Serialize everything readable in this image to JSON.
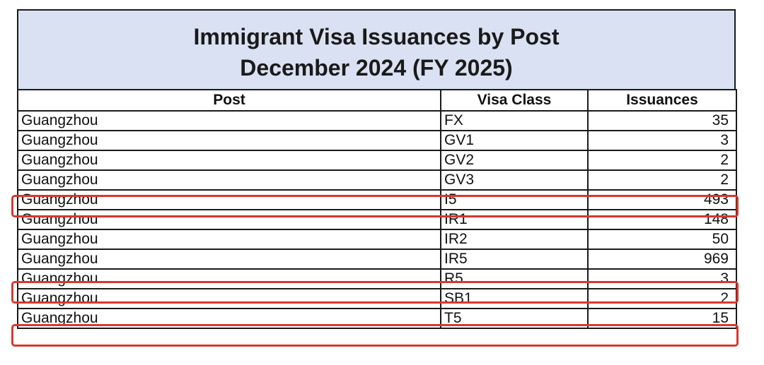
{
  "title": {
    "line1": "Immigrant Visa Issuances by Post",
    "line2": "December 2024 (FY 2025)"
  },
  "columns": [
    "Post",
    "Visa Class",
    "Issuances"
  ],
  "rows": [
    {
      "post": "Guangzhou",
      "visa_class": "FX",
      "issuances": "35"
    },
    {
      "post": "Guangzhou",
      "visa_class": "GV1",
      "issuances": "3"
    },
    {
      "post": "Guangzhou",
      "visa_class": "GV2",
      "issuances": "2"
    },
    {
      "post": "Guangzhou",
      "visa_class": "GV3",
      "issuances": "2"
    },
    {
      "post": "Guangzhou",
      "visa_class": "I5",
      "issuances": "493"
    },
    {
      "post": "Guangzhou",
      "visa_class": "IR1",
      "issuances": "148"
    },
    {
      "post": "Guangzhou",
      "visa_class": "IR2",
      "issuances": "50"
    },
    {
      "post": "Guangzhou",
      "visa_class": "IR5",
      "issuances": "969"
    },
    {
      "post": "Guangzhou",
      "visa_class": "R5",
      "issuances": "3"
    },
    {
      "post": "Guangzhou",
      "visa_class": "SB1",
      "issuances": "2"
    },
    {
      "post": "Guangzhou",
      "visa_class": "T5",
      "issuances": "15"
    }
  ],
  "highlighted_classes": [
    "I5",
    "R5",
    "T5"
  ],
  "colors": {
    "header_bg": "#d9e1f2",
    "highlight": "#d9382e",
    "border": "#1a1a1a"
  }
}
